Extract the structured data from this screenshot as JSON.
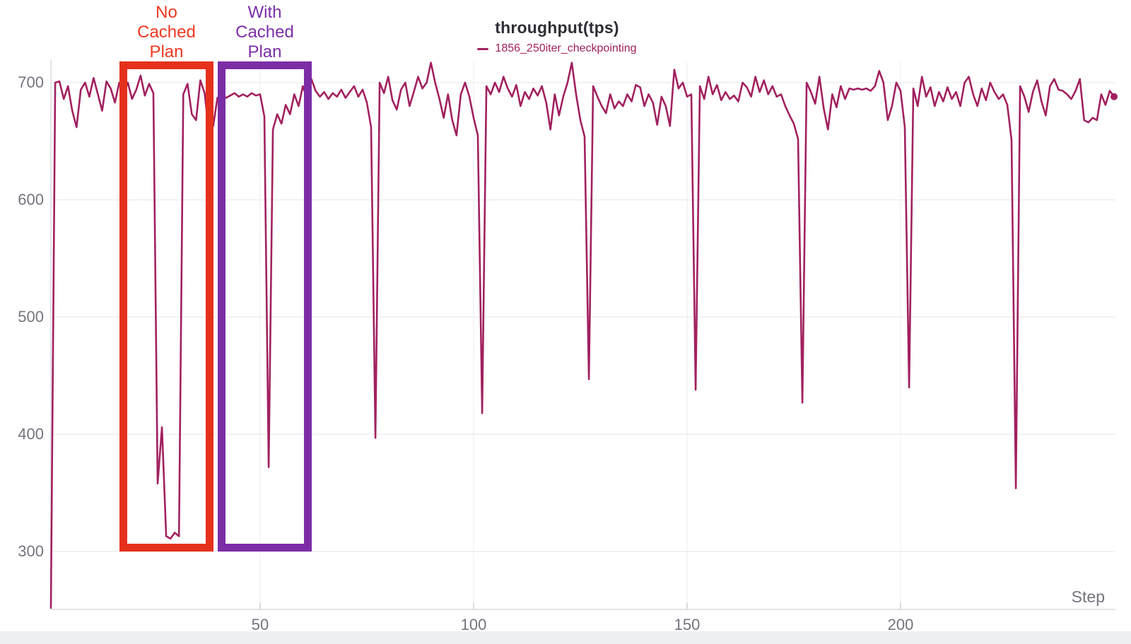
{
  "chart": {
    "title": "throughput(tps)",
    "xlabel": "Step",
    "legend": [
      {
        "label": "1856_250iter_checkpointing",
        "color": "#a1215f"
      }
    ]
  },
  "annotations": [
    {
      "id": "no-cached-plan",
      "lines": [
        "No",
        "Cached",
        "Plan"
      ],
      "color": "#ee3a22"
    },
    {
      "id": "with-cached-plan",
      "lines": [
        "With",
        "Cached",
        "Plan"
      ],
      "color": "#7c2da6"
    }
  ],
  "chart_data": {
    "type": "line",
    "title": "throughput(tps)",
    "xlabel": "Step",
    "ylabel": "",
    "x_ticks": [
      50,
      100,
      150,
      200
    ],
    "y_ticks": [
      700,
      600,
      500,
      400,
      300
    ],
    "xlim": [
      1,
      250
    ],
    "ylim": [
      251,
      720
    ],
    "grid": true,
    "legend_position": "top-center",
    "annotations": [
      {
        "text": "No Cached Plan",
        "color": "#e5311c",
        "step_range": [
          17,
          39
        ]
      },
      {
        "text": "With Cached Plan",
        "color": "#7c2da6",
        "step_range": [
          40,
          62
        ]
      }
    ],
    "x_start": 1,
    "series": [
      {
        "name": "1856_250iter_checkpointing",
        "color": "#a1215f",
        "values": [
          252,
          700,
          701,
          686,
          697,
          676,
          662,
          694,
          700,
          688,
          704,
          690,
          676,
          701,
          695,
          683,
          700,
          690,
          700,
          686,
          694,
          706,
          689,
          699,
          691,
          358,
          406,
          313,
          311,
          316,
          313,
          690,
          699,
          673,
          668,
          702,
          691,
          658,
          663,
          687,
          690,
          687,
          689,
          691,
          688,
          690,
          688,
          691,
          689,
          690,
          671,
          372,
          660,
          673,
          665,
          681,
          673,
          690,
          680,
          697,
          686,
          703,
          693,
          688,
          692,
          686,
          691,
          688,
          694,
          687,
          692,
          697,
          688,
          694,
          683,
          662,
          397,
          700,
          691,
          705,
          685,
          677,
          694,
          700,
          680,
          692,
          705,
          695,
          700,
          717,
          700,
          686,
          670,
          690,
          668,
          655,
          690,
          700,
          688,
          670,
          655,
          418,
          697,
          690,
          700,
          692,
          705,
          695,
          688,
          698,
          680,
          692,
          686,
          695,
          689,
          697,
          683,
          660,
          690,
          672,
          688,
          700,
          717,
          690,
          668,
          654,
          447,
          697,
          688,
          680,
          674,
          690,
          678,
          684,
          680,
          690,
          684,
          698,
          696,
          680,
          690,
          683,
          664,
          688,
          680,
          663,
          711,
          695,
          700,
          688,
          690,
          438,
          697,
          686,
          705,
          690,
          698,
          685,
          692,
          686,
          689,
          684,
          700,
          696,
          688,
          705,
          692,
          702,
          690,
          697,
          688,
          690,
          680,
          672,
          665,
          652,
          427,
          700,
          692,
          682,
          705,
          678,
          660,
          690,
          679,
          697,
          686,
          695,
          694,
          695,
          694,
          695,
          693,
          697,
          710,
          700,
          668,
          680,
          700,
          693,
          662,
          440,
          695,
          680,
          705,
          688,
          696,
          680,
          692,
          684,
          696,
          686,
          692,
          680,
          700,
          705,
          690,
          680,
          695,
          685,
          700,
          692,
          686,
          690,
          681,
          651,
          354,
          697,
          688,
          675,
          692,
          702,
          684,
          672,
          697,
          703,
          694,
          693,
          690,
          686,
          693,
          703,
          668,
          666,
          670,
          668,
          690,
          681,
          693,
          688
        ]
      }
    ]
  }
}
